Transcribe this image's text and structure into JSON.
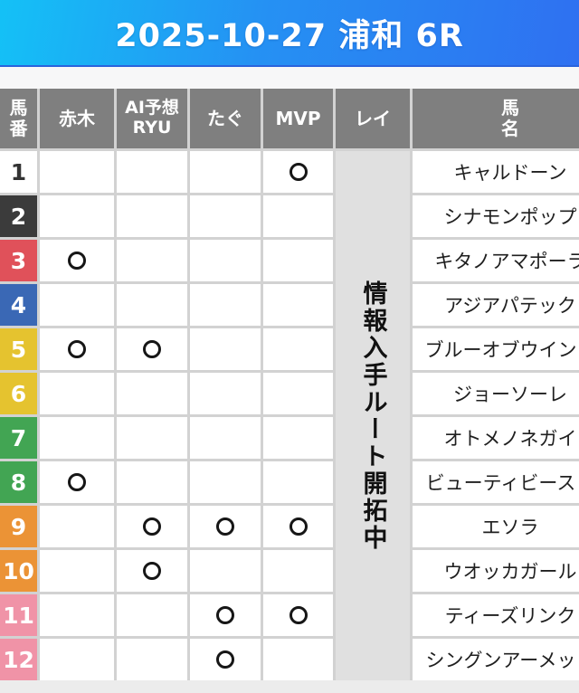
{
  "banner": {
    "title": "2025-10-27 浦和 6R"
  },
  "table": {
    "header": {
      "uma_ban_lines": [
        "馬",
        "番"
      ],
      "akagi": "赤木",
      "ai_yoso_lines": [
        "AI予想",
        "RYU"
      ],
      "tagu": "たぐ",
      "mvp": "MVP",
      "rei": "レイ",
      "uma_mei_lines": [
        "馬",
        "名"
      ]
    },
    "rei_column_notice": "情報入手ルート開拓中",
    "mark_symbol": "〇",
    "mark_columns": [
      "akagi",
      "ai",
      "tagu",
      "mvp"
    ],
    "rows": [
      {
        "number": "1",
        "frame_color": "#ffffff",
        "number_text_color": "#333333",
        "marks": {
          "akagi": false,
          "ai": false,
          "tagu": false,
          "mvp": true
        },
        "horse_name": "キャルドーン"
      },
      {
        "number": "2",
        "frame_color": "#3b3b3b",
        "number_text_color": "#ffffff",
        "marks": {
          "akagi": false,
          "ai": false,
          "tagu": false,
          "mvp": false
        },
        "horse_name": "シナモンポップ"
      },
      {
        "number": "3",
        "frame_color": "#e0515a",
        "number_text_color": "#ffffff",
        "marks": {
          "akagi": true,
          "ai": false,
          "tagu": false,
          "mvp": false
        },
        "horse_name": "キタノアマポーラ"
      },
      {
        "number": "4",
        "frame_color": "#3a68b5",
        "number_text_color": "#ffffff",
        "marks": {
          "akagi": false,
          "ai": false,
          "tagu": false,
          "mvp": false
        },
        "horse_name": "アジアパテック"
      },
      {
        "number": "5",
        "frame_color": "#e5c32f",
        "number_text_color": "#ffffff",
        "marks": {
          "akagi": true,
          "ai": true,
          "tagu": false,
          "mvp": false
        },
        "horse_name": "ブルーオブウインド"
      },
      {
        "number": "6",
        "frame_color": "#e5c32f",
        "number_text_color": "#ffffff",
        "marks": {
          "akagi": false,
          "ai": false,
          "tagu": false,
          "mvp": false
        },
        "horse_name": "ジョーソーレ"
      },
      {
        "number": "7",
        "frame_color": "#42a553",
        "number_text_color": "#ffffff",
        "marks": {
          "akagi": false,
          "ai": false,
          "tagu": false,
          "mvp": false
        },
        "horse_name": "オトメノネガイ"
      },
      {
        "number": "8",
        "frame_color": "#42a553",
        "number_text_color": "#ffffff",
        "marks": {
          "akagi": true,
          "ai": false,
          "tagu": false,
          "mvp": false
        },
        "horse_name": "ビューティビースト"
      },
      {
        "number": "9",
        "frame_color": "#eb9336",
        "number_text_color": "#ffffff",
        "marks": {
          "akagi": false,
          "ai": true,
          "tagu": true,
          "mvp": true
        },
        "horse_name": "エソラ"
      },
      {
        "number": "10",
        "frame_color": "#eb9336",
        "number_text_color": "#ffffff",
        "marks": {
          "akagi": false,
          "ai": true,
          "tagu": false,
          "mvp": false
        },
        "horse_name": "ウオッカガール"
      },
      {
        "number": "11",
        "frame_color": "#f093a7",
        "number_text_color": "#ffffff",
        "marks": {
          "akagi": false,
          "ai": false,
          "tagu": true,
          "mvp": true
        },
        "horse_name": "ティーズリンク"
      },
      {
        "number": "12",
        "frame_color": "#f093a7",
        "number_text_color": "#ffffff",
        "marks": {
          "akagi": false,
          "ai": false,
          "tagu": true,
          "mvp": false
        },
        "horse_name": "シングンアーメット"
      }
    ]
  },
  "colors": {
    "banner_gradient_start": "#14c1f6",
    "banner_gradient_end": "#2f70f1",
    "header_cell_bg": "#7f7f7f",
    "grid_line": "#d2d2d2",
    "rei_cell_bg": "#e0e0e0",
    "mark_ring": "#161616"
  }
}
